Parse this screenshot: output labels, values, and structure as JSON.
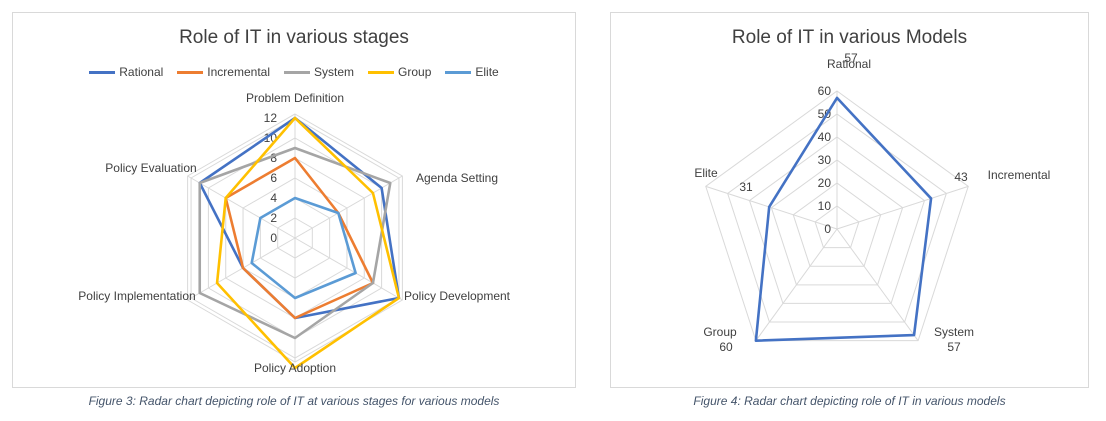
{
  "figures": [
    {
      "caption": "Figure 3: Radar chart depicting role of IT at various stages for various models"
    },
    {
      "caption": "Figure 4: Radar chart depicting role of IT in various models"
    }
  ],
  "chart_data": [
    {
      "type": "radar",
      "title": "Role of IT in various stages",
      "categories": [
        "Problem Definition",
        "Agenda Setting",
        "Policy Development",
        "Policy Adoption",
        "Policy Implementation",
        "Policy Evaluation"
      ],
      "rlim": [
        0,
        12
      ],
      "ticks": [
        0,
        2,
        4,
        6,
        8,
        10,
        12
      ],
      "legend_position": "top",
      "grid": true,
      "series": [
        {
          "name": "Rational",
          "color": "#4472c4",
          "values": [
            12,
            10,
            12,
            8,
            6,
            11
          ]
        },
        {
          "name": "Incremental",
          "color": "#ed7d31",
          "values": [
            8,
            5,
            9,
            8,
            6,
            8
          ]
        },
        {
          "name": "System",
          "color": "#a5a5a5",
          "values": [
            9,
            11,
            9,
            10,
            11,
            11
          ]
        },
        {
          "name": "Group",
          "color": "#ffc000",
          "values": [
            12,
            9,
            12,
            13,
            9,
            8
          ]
        },
        {
          "name": "Elite",
          "color": "#5b9bd5",
          "values": [
            4,
            5,
            7,
            6,
            5,
            4
          ]
        }
      ]
    },
    {
      "type": "radar",
      "title": "Role of IT in various Models",
      "categories": [
        "Rational",
        "Incremental",
        "System",
        "Group",
        "Elite"
      ],
      "rlim": [
        0,
        60
      ],
      "ticks": [
        0,
        10,
        20,
        30,
        40,
        50,
        60
      ],
      "grid": true,
      "data_labels": true,
      "series": [
        {
          "color": "#4472c4",
          "values": [
            57,
            43,
            57,
            60,
            31
          ]
        }
      ]
    }
  ]
}
